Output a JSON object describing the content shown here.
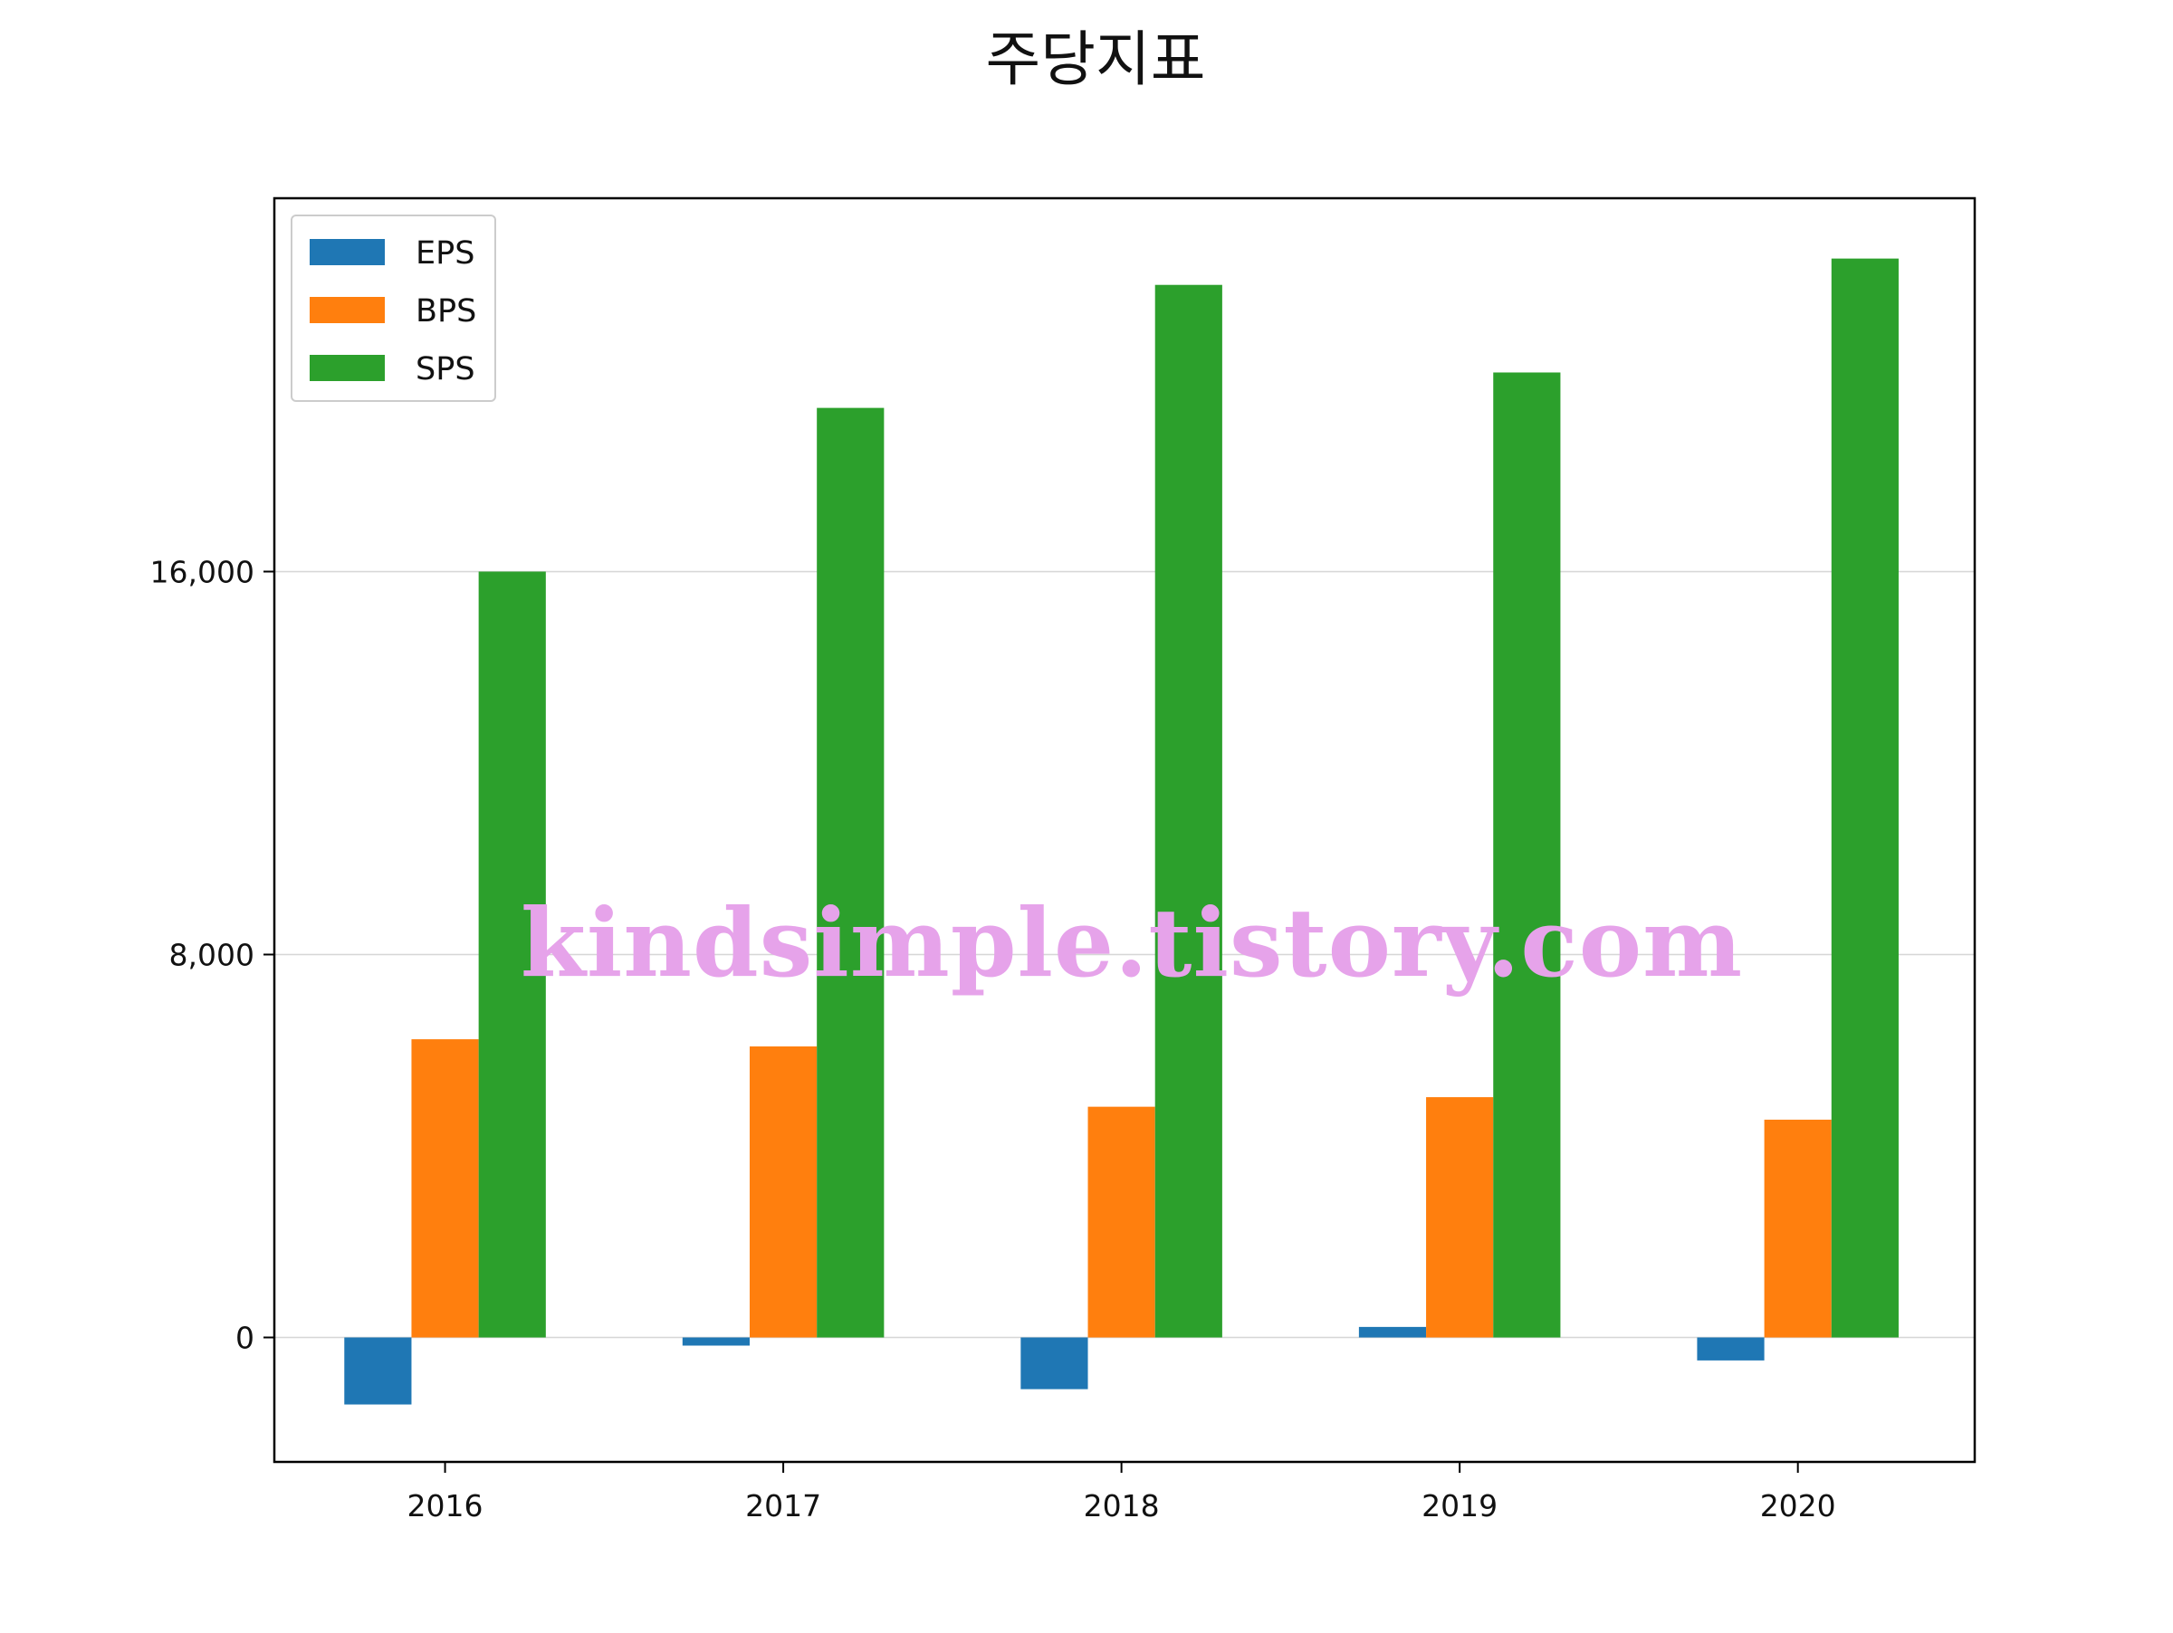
{
  "chart_data": {
    "type": "bar",
    "title": "주당지표",
    "xlabel": "",
    "ylabel": "",
    "categories": [
      "2016",
      "2017",
      "2018",
      "2019",
      "2020"
    ],
    "series": [
      {
        "name": "EPS",
        "color": "#1f77b4",
        "values": [
          -1400,
          -170,
          -1080,
          220,
          -480
        ]
      },
      {
        "name": "BPS",
        "color": "#ff7f0e",
        "values": [
          6230,
          6080,
          4820,
          5020,
          4550
        ]
      },
      {
        "name": "SPS",
        "color": "#2ca02c",
        "values": [
          16000,
          19420,
          21990,
          20160,
          22540
        ]
      }
    ],
    "ylim": [
      -2600,
      23800
    ],
    "yticks": [
      0,
      8000,
      16000
    ],
    "ytick_labels": [
      "0",
      "8,000",
      "16,000"
    ],
    "grid": "horizontal",
    "legend_position": "upper-left",
    "watermark": "kindsimple.tistory.com"
  }
}
